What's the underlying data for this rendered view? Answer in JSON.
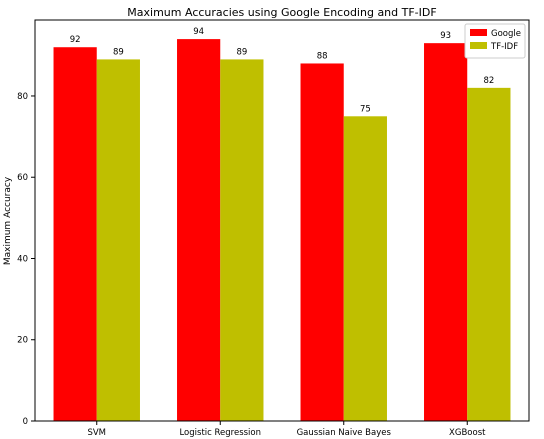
{
  "chart_data": {
    "type": "bar",
    "title": "Maximum Accuracies using Google Encoding and TF-IDF",
    "xlabel": "",
    "ylabel": "Maximum Accuracy",
    "categories": [
      "SVM",
      "Logistic Regression",
      "Gaussian Naive Bayes",
      "XGBoost"
    ],
    "series": [
      {
        "name": "Google",
        "color": "#ff0000",
        "values": [
          92,
          94,
          88,
          93
        ],
        "labels": [
          "92",
          "94",
          "88",
          "93"
        ]
      },
      {
        "name": "TF-IDF",
        "color": "#bfbf00",
        "values": [
          89,
          89,
          75,
          82
        ],
        "labels": [
          "89",
          "89",
          "75",
          "82"
        ]
      }
    ],
    "ylim": [
      0,
      98.7
    ],
    "yticks": [
      0,
      20,
      40,
      60,
      80
    ],
    "ytick_labels": [
      "0",
      "20",
      "40",
      "60",
      "80"
    ],
    "legend_position": "top-right",
    "grid": false
  }
}
